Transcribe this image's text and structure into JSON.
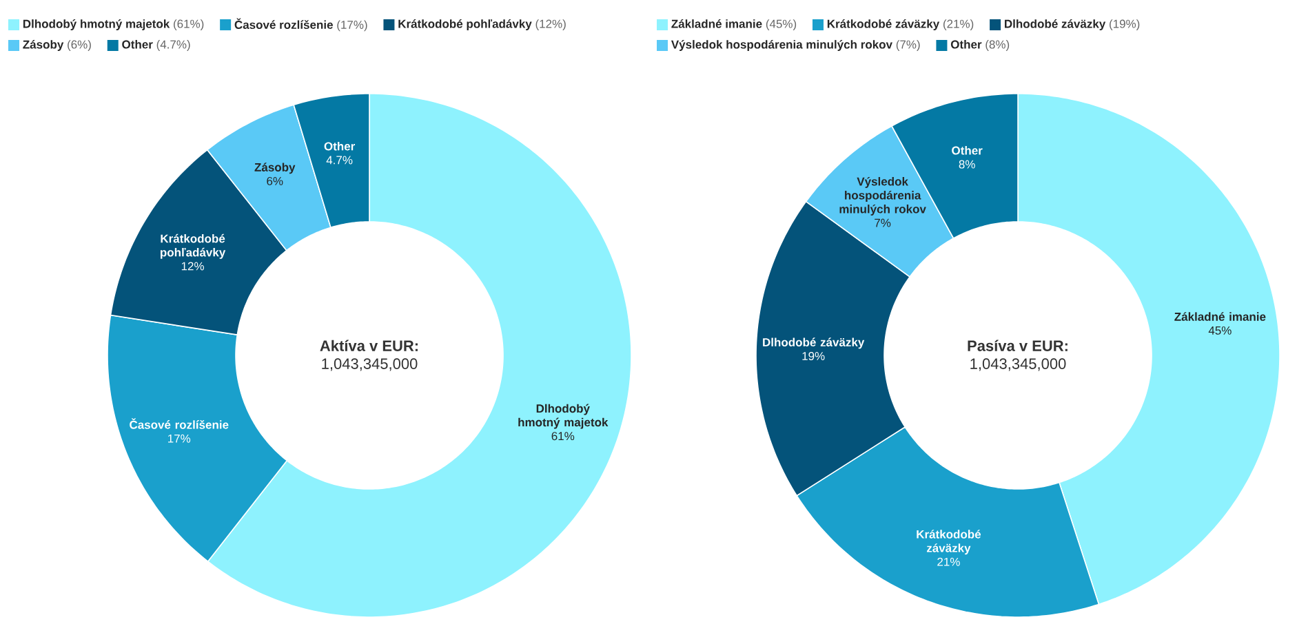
{
  "chart_data": [
    {
      "type": "donut",
      "title": "Aktíva v EUR:",
      "subtitle": "1,043,345,000",
      "legend": "top",
      "categories": [
        "Dlhodobý hmotný majetok",
        "Časové rozlíšenie",
        "Krátkodobé pohľadávky",
        "Zásoby",
        "Other"
      ],
      "values": [
        61,
        17,
        12,
        6,
        4.7
      ],
      "value_labels": [
        "61%",
        "17%",
        "12%",
        "6%",
        "4.7%"
      ],
      "annotations": [
        "(61%)",
        "(17%)",
        "(12%)",
        "(6%)",
        "(4.7%)"
      ],
      "colors": [
        "#8ef2fe",
        "#1aa0cc",
        "#04537a",
        "#5ac9f6",
        "#0479a4"
      ]
    },
    {
      "type": "donut",
      "title": "Pasíva v EUR:",
      "subtitle": "1,043,345,000",
      "legend": "top",
      "categories": [
        "Základné imanie",
        "Krátkodobé záväzky",
        "Dlhodobé záväzky",
        "Výsledok hospodárenia minulých rokov",
        "Other"
      ],
      "values": [
        45,
        21,
        19,
        7,
        8
      ],
      "value_labels": [
        "45%",
        "21%",
        "19%",
        "7%",
        "8%"
      ],
      "annotations": [
        "(45%)",
        "(21%)",
        "(19%)",
        "(7%)",
        "(8%)"
      ],
      "colors": [
        "#8ef2fe",
        "#1aa0cc",
        "#04537a",
        "#5ac9f6",
        "#0479a4"
      ]
    }
  ]
}
